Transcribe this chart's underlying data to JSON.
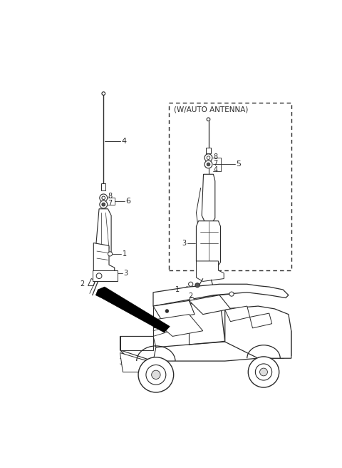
{
  "bg_color": "#ffffff",
  "line_color": "#2a2a2a",
  "fig_width": 4.8,
  "fig_height": 6.56,
  "dpi": 100,
  "inset_title": "(W/AUTO ANTENNA)"
}
